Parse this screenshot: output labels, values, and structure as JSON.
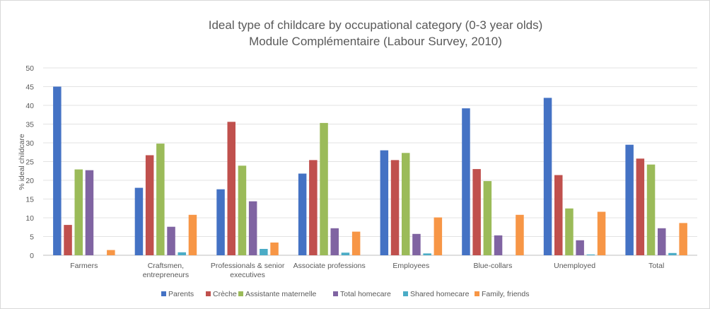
{
  "chart_data": {
    "type": "bar",
    "title": "Ideal type of childcare by occupational category (0-3 year olds)",
    "subtitle": "Module Complémentaire (Labour Survey, 2010)",
    "xlabel": "",
    "ylabel": "% ideal childcare",
    "ylim": [
      0,
      50
    ],
    "yticks": [
      "0",
      "5",
      "10",
      "15",
      "20",
      "25",
      "30",
      "35",
      "40",
      "45",
      "50"
    ],
    "grid": true,
    "legend_position": "bottom",
    "categories": [
      [
        "Farmers"
      ],
      [
        "Craftsmen,",
        "entrepreneurs"
      ],
      [
        "Professionals & senior",
        "executives"
      ],
      [
        "Associate professions"
      ],
      [
        "Employees"
      ],
      [
        "Blue-collars"
      ],
      [
        "Unemployed"
      ],
      [
        "Total"
      ]
    ],
    "series": [
      {
        "name": "Parents",
        "color": "#4472c4",
        "values": [
          45.0,
          18.0,
          17.6,
          21.8,
          28.0,
          39.2,
          42.0,
          29.5
        ]
      },
      {
        "name": "Crèche",
        "color": "#c0504d",
        "values": [
          8.1,
          26.7,
          35.6,
          25.4,
          25.4,
          23.0,
          21.4,
          25.8
        ]
      },
      {
        "name": "Assistante maternelle",
        "color": "#9bbb59",
        "values": [
          22.9,
          29.8,
          23.9,
          35.3,
          27.3,
          19.8,
          12.5,
          24.2
        ]
      },
      {
        "name": "Total homecare",
        "color": "#8064a2",
        "values": [
          22.7,
          7.6,
          14.4,
          7.2,
          5.7,
          5.3,
          4.0,
          7.2
        ]
      },
      {
        "name": "Shared homecare",
        "color": "#4bacc6",
        "values": [
          0.0,
          0.8,
          1.7,
          0.7,
          0.5,
          0.0,
          0.2,
          0.6
        ]
      },
      {
        "name": "Family, friends",
        "color": "#f79646",
        "values": [
          1.4,
          10.8,
          3.4,
          6.3,
          10.1,
          10.8,
          11.6,
          8.6
        ]
      }
    ]
  }
}
